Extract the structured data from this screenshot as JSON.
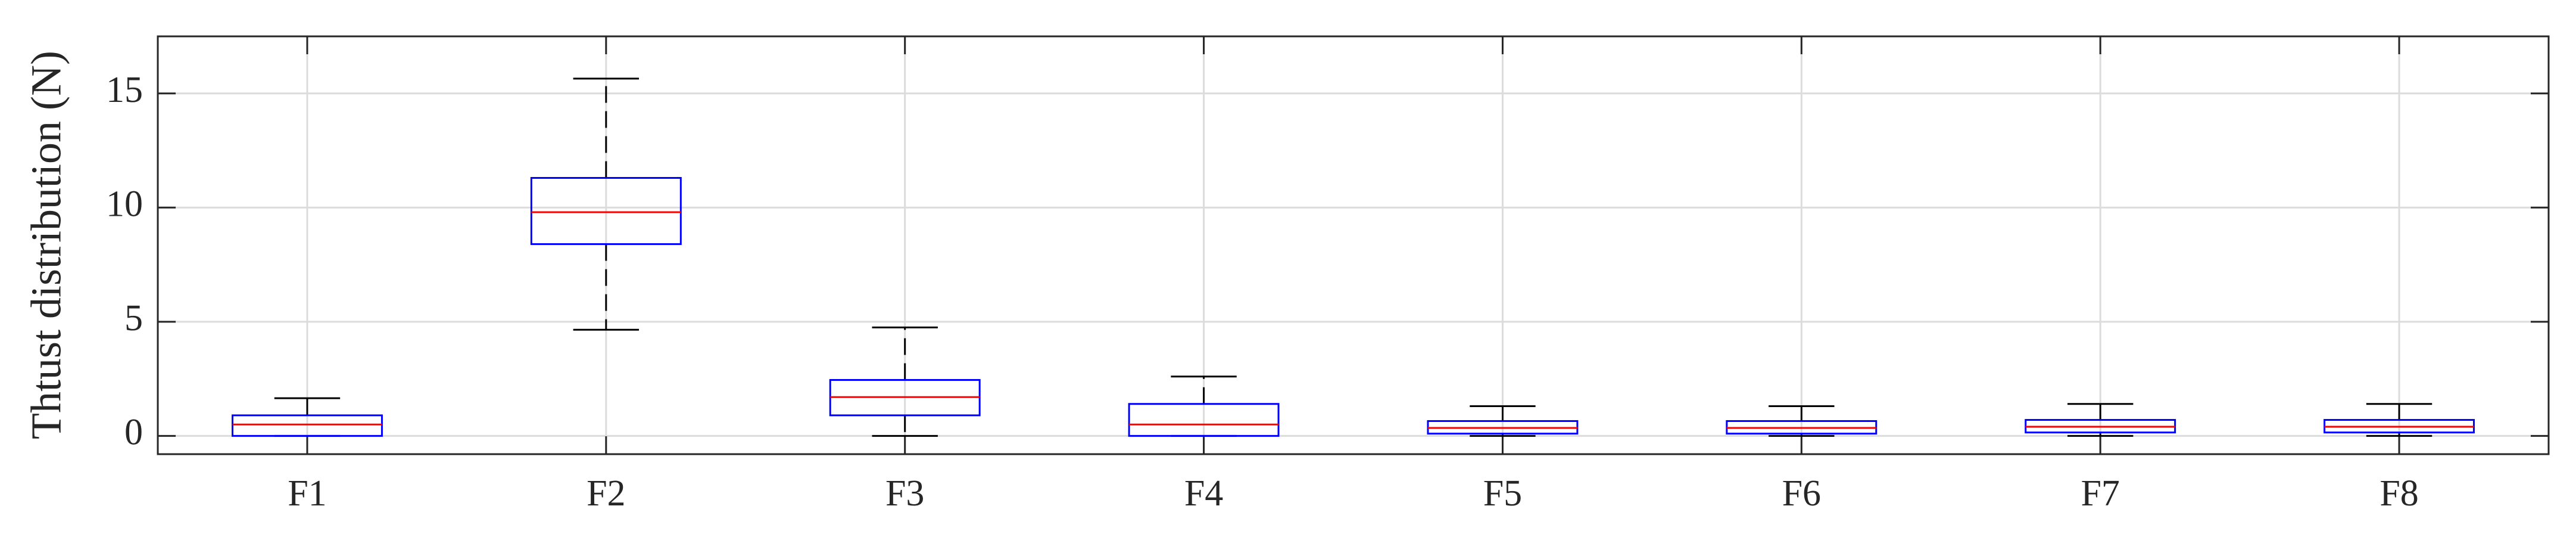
{
  "chart_data": {
    "type": "box",
    "ylabel": "Thtust distribution (N)",
    "categories": [
      "F1",
      "F2",
      "F3",
      "F4",
      "F5",
      "F6",
      "F7",
      "F8"
    ],
    "boxes": [
      {
        "min": 0,
        "q1": 0,
        "median": 0.5,
        "q3": 0.9,
        "max": 1.65
      },
      {
        "min": 4.65,
        "q1": 8.4,
        "median": 9.8,
        "q3": 11.3,
        "max": 15.65
      },
      {
        "min": 0,
        "q1": 0.9,
        "median": 1.7,
        "q3": 2.45,
        "max": 4.75
      },
      {
        "min": 0,
        "q1": 0,
        "median": 0.5,
        "q3": 1.4,
        "max": 2.6
      },
      {
        "min": 0,
        "q1": 0.1,
        "median": 0.35,
        "q3": 0.65,
        "max": 1.3
      },
      {
        "min": 0,
        "q1": 0.1,
        "median": 0.35,
        "q3": 0.65,
        "max": 1.3
      },
      {
        "min": 0,
        "q1": 0.15,
        "median": 0.4,
        "q3": 0.7,
        "max": 1.4
      },
      {
        "min": 0,
        "q1": 0.15,
        "median": 0.4,
        "q3": 0.7,
        "max": 1.4
      }
    ],
    "box_color": "#0000ff",
    "median_color": "#ff0000",
    "whisker_color": "#000000",
    "ylim": [
      -0.8,
      17.5
    ],
    "yticks": [
      0,
      5,
      10,
      15
    ],
    "grid": true
  }
}
